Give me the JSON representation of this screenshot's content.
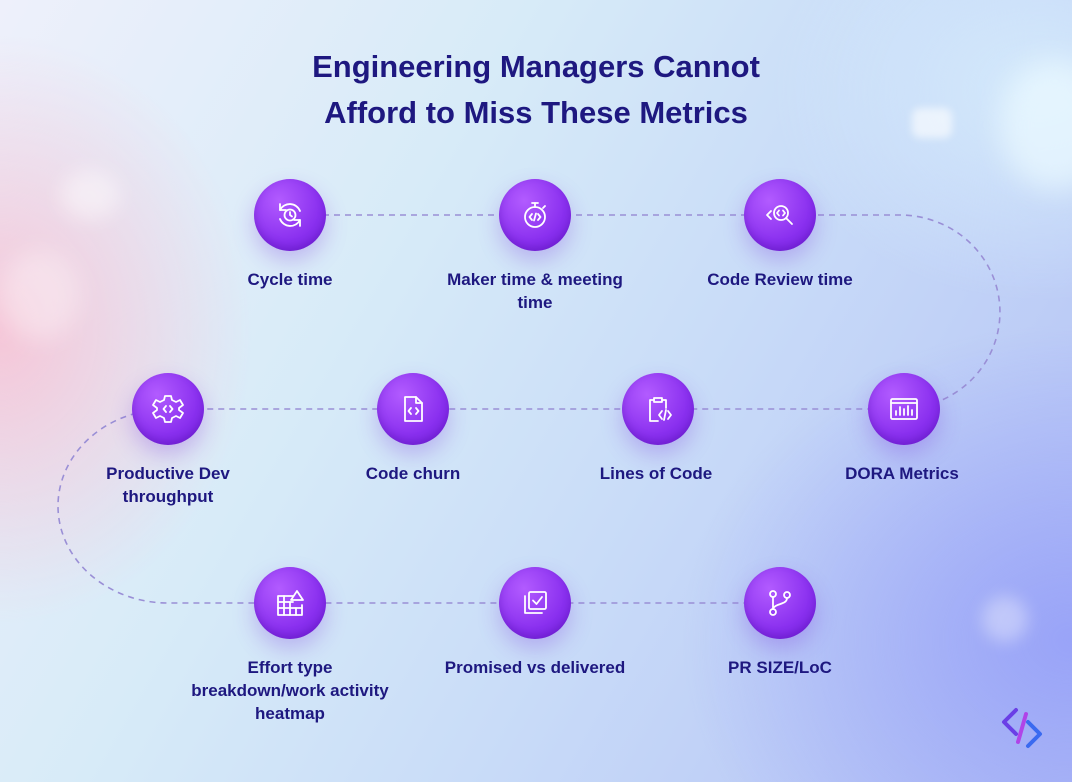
{
  "title": {
    "line1": "Engineering Managers Cannot",
    "line2": "Afford to Miss These Metrics"
  },
  "metrics": [
    {
      "label": "Cycle time",
      "icon": "cycle-clock-icon"
    },
    {
      "label": "Maker time & meeting time",
      "icon": "stopwatch-code-icon"
    },
    {
      "label": "Code Review time",
      "icon": "code-search-icon"
    },
    {
      "label": "DORA Metrics",
      "icon": "dashboard-chart-icon"
    },
    {
      "label": "Lines of Code",
      "icon": "clipboard-code-icon"
    },
    {
      "label": "Code churn",
      "icon": "code-file-icon"
    },
    {
      "label": "Productive Dev throughput",
      "icon": "gear-code-icon"
    },
    {
      "label": "Effort type breakdown/work activity heatmap",
      "icon": "grid-triangle-icon"
    },
    {
      "label": "Promised vs delivered",
      "icon": "checklist-stack-icon"
    },
    {
      "label": "PR SIZE/LoC",
      "icon": "git-branch-icon"
    }
  ],
  "colors": {
    "title": "#1e1880",
    "node": "#8a30ef",
    "path": "#9a8fd6"
  },
  "brand_logo_icon": "hatica-logo-icon"
}
